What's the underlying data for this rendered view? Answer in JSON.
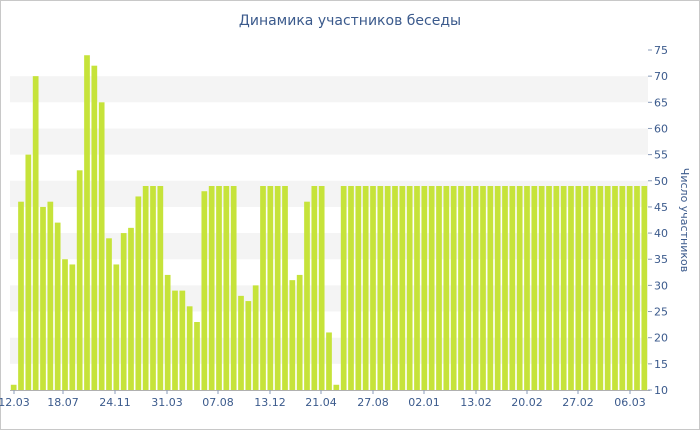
{
  "chart_data": {
    "type": "bar",
    "title": "Динамика участников беседы",
    "xlabel": "",
    "ylabel": "Число участников",
    "ylim": [
      10,
      75
    ],
    "y_ticks": [
      10,
      15,
      20,
      25,
      30,
      35,
      40,
      45,
      50,
      55,
      60,
      65,
      70,
      75
    ],
    "y_axis_side": "right",
    "grid": "alternating horizontal bands",
    "x_tick_labels": [
      "12.03",
      "18.07",
      "24.11",
      "31.03",
      "07.08",
      "13.12",
      "21.04",
      "27.08",
      "02.01",
      "13.02",
      "20.02",
      "27.02",
      "06.03"
    ],
    "values": [
      11,
      46,
      55,
      70,
      45,
      46,
      42,
      35,
      34,
      52,
      74,
      72,
      65,
      39,
      34,
      40,
      41,
      47,
      49,
      49,
      49,
      32,
      29,
      29,
      26,
      23,
      48,
      49,
      49,
      49,
      49,
      28,
      27,
      30,
      49,
      49,
      49,
      49,
      31,
      32,
      46,
      49,
      49,
      21,
      11,
      49,
      49,
      49,
      49,
      49,
      49,
      49,
      49,
      49,
      49,
      49,
      49,
      49,
      49,
      49,
      49,
      49,
      49,
      49,
      49,
      49,
      49,
      49,
      49,
      49,
      49,
      49,
      49,
      49,
      49,
      49,
      49,
      49,
      49,
      49,
      49,
      49,
      49,
      49,
      49,
      49,
      49
    ],
    "bar_color": "#c6e33a",
    "band_color": "#f4f4f4"
  }
}
